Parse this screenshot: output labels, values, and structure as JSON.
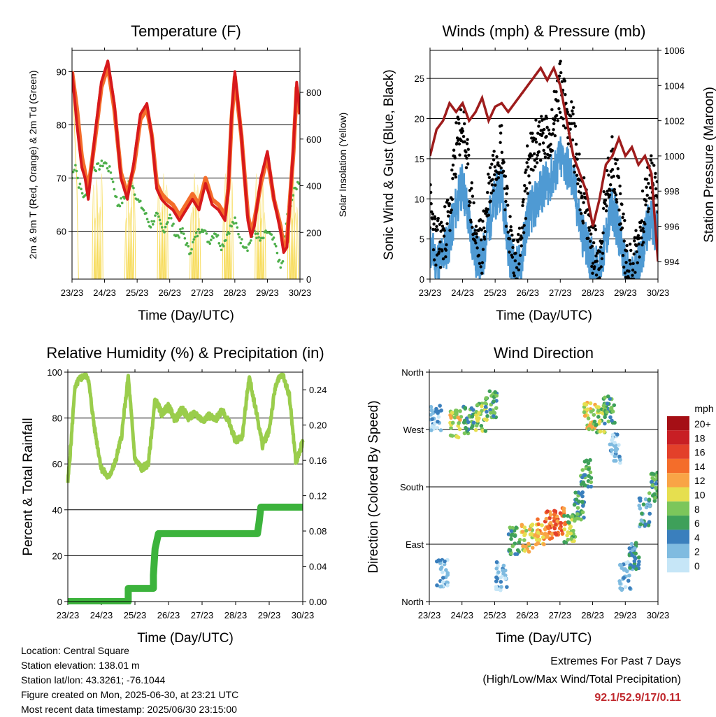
{
  "chart_data": [
    {
      "type": "line",
      "title": "Temperature (F)",
      "xlabel": "Time (Day/UTC)",
      "ylabel": "2m & 9m T (Red, Orange) & 2m Td (Green)",
      "y2label": "Solar Insolation (Yellow)",
      "x_ticks": [
        "23/23",
        "24/23",
        "25/23",
        "26/23",
        "27/23",
        "28/23",
        "29/23",
        "30/23"
      ],
      "ylim": [
        51,
        94
      ],
      "y_ticks": [
        60,
        70,
        80,
        90
      ],
      "y2lim": [
        0,
        980
      ],
      "y2_ticks": [
        0,
        200,
        400,
        600,
        800
      ],
      "grid": true,
      "series": [
        {
          "name": "2m T",
          "color": "#d7191c",
          "x": [
            0,
            0.15,
            0.3,
            0.4,
            0.5,
            0.7,
            0.9,
            1.1,
            1.3,
            1.5,
            1.7,
            1.9,
            2.1,
            2.3,
            2.45,
            2.6,
            2.75,
            2.9,
            3.1,
            3.3,
            3.5,
            3.7,
            3.9,
            4.1,
            4.2,
            4.3,
            4.5,
            4.7,
            4.8,
            4.9,
            5.0,
            5.2,
            5.4,
            5.5,
            5.6,
            5.8,
            6.0,
            6.2,
            6.4,
            6.5,
            6.6,
            6.8,
            6.9,
            7.0
          ],
          "y": [
            90,
            80,
            72,
            70,
            66,
            78,
            88,
            92,
            84,
            70,
            66,
            73,
            82,
            84,
            78,
            68,
            66,
            65,
            64,
            62,
            64,
            66,
            64,
            69,
            67,
            65,
            64,
            62,
            68,
            82,
            90,
            78,
            62,
            59,
            61,
            70,
            75,
            66,
            60,
            56,
            57,
            76,
            88,
            82
          ]
        },
        {
          "name": "9m T",
          "color": "#f46d2a",
          "x": [
            0,
            0.15,
            0.3,
            0.4,
            0.5,
            0.7,
            0.9,
            1.1,
            1.3,
            1.5,
            1.7,
            1.9,
            2.1,
            2.3,
            2.45,
            2.6,
            2.75,
            2.9,
            3.1,
            3.3,
            3.5,
            3.7,
            3.9,
            4.1,
            4.2,
            4.3,
            4.5,
            4.7,
            4.8,
            4.9,
            5.0,
            5.2,
            5.4,
            5.5,
            5.6,
            5.8,
            6.0,
            6.2,
            6.4,
            6.5,
            6.6,
            6.8,
            6.9,
            7.0
          ],
          "y": [
            90,
            83,
            74,
            71,
            68,
            77,
            87,
            91,
            83,
            71,
            67,
            72,
            81,
            83,
            78,
            69,
            67,
            66,
            65,
            63,
            65,
            67,
            65,
            70,
            68,
            66,
            65,
            63,
            68,
            81,
            89,
            78,
            63,
            60,
            62,
            69,
            74,
            66,
            61,
            57,
            58,
            75,
            87,
            82
          ]
        },
        {
          "name": "2m Td",
          "color": "#4daf4a",
          "x": [
            0,
            0.1,
            0.2,
            0.4,
            0.6,
            0.8,
            1.0,
            1.2,
            1.4,
            1.6,
            1.8,
            2.0,
            2.2,
            2.4,
            2.6,
            2.8,
            3.0,
            3.2,
            3.4,
            3.6,
            3.8,
            4.0,
            4.2,
            4.4,
            4.6,
            4.8,
            5.0,
            5.2,
            5.4,
            5.6,
            5.8,
            6.0,
            6.2,
            6.3,
            6.4,
            6.5,
            6.6,
            6.8,
            7.0
          ],
          "y": [
            70,
            73,
            69,
            66,
            72,
            72,
            73,
            71,
            65,
            66,
            70,
            66,
            64,
            61,
            63,
            60,
            63,
            59,
            60,
            56,
            59,
            61,
            58,
            60,
            57,
            60,
            62,
            58,
            57,
            60,
            58,
            60,
            58,
            56,
            53,
            55,
            63,
            67,
            70
          ]
        },
        {
          "name": "Solar Insolation",
          "color": "#f7dc5c",
          "axis": "y2",
          "x": [
            0,
            0.15,
            0.35,
            0.6,
            0.85,
            1.15,
            1.4,
            1.6,
            1.85,
            2.1,
            2.35,
            2.6,
            2.85,
            3.1,
            3.35,
            3.6,
            3.85,
            4.1,
            4.35,
            4.6,
            4.85,
            5.1,
            5.35,
            5.6,
            5.85,
            6.1,
            6.35,
            6.6,
            6.85,
            7.0
          ],
          "y": [
            900,
            400,
            0,
            0,
            0,
            0,
            0,
            0,
            900,
            0,
            0,
            0,
            0,
            0,
            0,
            0,
            0,
            0,
            0,
            0,
            0,
            0,
            0,
            0,
            0,
            0,
            0,
            0,
            850,
            0
          ]
        }
      ]
    },
    {
      "type": "line",
      "title": "Winds (mph) & Pressure (mb)",
      "xlabel": "Time (Day/UTC)",
      "ylabel": "Sonic Wind & Gust (Blue, Black)",
      "y2label": "Station Pressure (Maroon)",
      "x_ticks": [
        "23/23",
        "24/23",
        "25/23",
        "26/23",
        "27/23",
        "28/23",
        "29/23",
        "30/23"
      ],
      "ylim": [
        0,
        28.5
      ],
      "y_ticks": [
        0,
        5,
        10,
        15,
        20,
        25
      ],
      "y2lim": [
        993.0,
        1006.0
      ],
      "y2_ticks": [
        994,
        996,
        998,
        1000,
        1002,
        1004,
        1006
      ],
      "grid": true,
      "series": [
        {
          "name": "Sonic Wind",
          "color": "#4f9ad3",
          "x": [
            0,
            0.2,
            0.4,
            0.6,
            0.8,
            1.0,
            1.2,
            1.4,
            1.6,
            1.8,
            2.0,
            2.2,
            2.4,
            2.6,
            2.8,
            3.0,
            3.2,
            3.4,
            3.6,
            3.8,
            4.0,
            4.2,
            4.4,
            4.6,
            4.8,
            5.0,
            5.2,
            5.4,
            5.6,
            5.8,
            6.0,
            6.2,
            6.4,
            6.6,
            6.8,
            7.0
          ],
          "y": [
            4,
            2,
            3,
            5,
            9,
            12,
            7,
            3,
            2,
            7,
            10,
            12,
            4,
            1,
            2,
            8,
            9,
            11,
            12,
            13,
            15,
            14,
            12,
            7,
            4,
            2,
            1,
            5,
            9,
            6,
            1,
            0,
            2,
            5,
            8,
            5
          ]
        },
        {
          "name": "Gust",
          "color": "#000000",
          "x": [
            0,
            0.2,
            0.4,
            0.6,
            0.8,
            1.0,
            1.2,
            1.4,
            1.6,
            1.8,
            2.0,
            2.2,
            2.4,
            2.6,
            2.8,
            3.0,
            3.2,
            3.4,
            3.6,
            3.8,
            4.0,
            4.2,
            4.4,
            4.6,
            4.8,
            5.0,
            5.2,
            5.4,
            5.6,
            5.8,
            6.0,
            6.2,
            6.4,
            6.6,
            6.8,
            7.0
          ],
          "y": [
            9,
            4,
            5,
            8,
            16,
            20,
            12,
            5,
            4,
            11,
            15,
            17,
            7,
            2,
            4,
            14,
            16,
            18,
            17,
            20,
            24,
            21,
            18,
            12,
            8,
            4,
            2,
            10,
            15,
            11,
            3,
            1,
            5,
            9,
            13,
            9
          ]
        },
        {
          "name": "Station Pressure",
          "color": "#9e1c1c",
          "axis": "y2",
          "x": [
            0,
            0.2,
            0.4,
            0.6,
            0.8,
            1.0,
            1.2,
            1.4,
            1.6,
            1.8,
            2.0,
            2.2,
            2.4,
            2.6,
            2.8,
            3.0,
            3.2,
            3.4,
            3.6,
            3.8,
            4.0,
            4.2,
            4.4,
            4.6,
            4.8,
            5.0,
            5.2,
            5.4,
            5.6,
            5.8,
            6.0,
            6.2,
            6.4,
            6.6,
            6.8,
            7.0
          ],
          "y": [
            1000.0,
            1001.5,
            1002.0,
            1003.0,
            1002.5,
            1003.0,
            1002.0,
            1002.5,
            1003.3,
            1002.0,
            1002.8,
            1003.0,
            1002.5,
            1003.0,
            1003.5,
            1004.0,
            1004.5,
            1005.0,
            1004.3,
            1005.0,
            1004.0,
            1002.0,
            1000.0,
            999.0,
            998.0,
            996.0,
            997.5,
            999.5,
            1000.0,
            1001.0,
            1000.0,
            1000.5,
            999.5,
            1000.0,
            999.0,
            994.0
          ]
        }
      ]
    },
    {
      "type": "line",
      "title": "Relative Humidity (%) & Precipitation (in)",
      "xlabel": "Time (Day/UTC)",
      "ylabel": "Percent & Total Rainfall",
      "x_ticks": [
        "23/23",
        "24/23",
        "25/23",
        "26/23",
        "27/23",
        "28/23",
        "29/23",
        "30/23"
      ],
      "ylim": [
        0,
        100
      ],
      "y_ticks": [
        0,
        20,
        40,
        60,
        80,
        100
      ],
      "y2lim": [
        0,
        0.26
      ],
      "y2_ticks": [
        0.0,
        0.04,
        0.08,
        0.12,
        0.16,
        0.2,
        0.24
      ],
      "grid": true,
      "series": [
        {
          "name": "Relative Humidity",
          "color": "#9acd4c",
          "x": [
            0,
            0.1,
            0.2,
            0.3,
            0.5,
            0.6,
            0.8,
            1.0,
            1.2,
            1.4,
            1.6,
            1.8,
            2.0,
            2.2,
            2.4,
            2.6,
            2.8,
            3.0,
            3.2,
            3.4,
            3.6,
            3.8,
            4.0,
            4.2,
            4.4,
            4.6,
            4.8,
            5.0,
            5.2,
            5.4,
            5.6,
            5.8,
            6.0,
            6.2,
            6.4,
            6.6,
            6.8,
            7.0
          ],
          "y": [
            52,
            70,
            92,
            96,
            99,
            98,
            75,
            58,
            54,
            60,
            72,
            98,
            62,
            58,
            60,
            88,
            82,
            85,
            79,
            84,
            80,
            82,
            79,
            81,
            79,
            84,
            78,
            70,
            72,
            98,
            84,
            68,
            75,
            95,
            99,
            90,
            60,
            70
          ]
        },
        {
          "name": "Total Precipitation",
          "color": "#3cb33c",
          "axis": "y2",
          "x": [
            0,
            1.8,
            1.8,
            2.55,
            2.55,
            2.6,
            2.7,
            5.65,
            5.7,
            5.75,
            7.0
          ],
          "y": [
            0.0,
            0.0,
            0.015,
            0.015,
            0.03,
            0.06,
            0.077,
            0.077,
            0.09,
            0.107,
            0.107
          ]
        }
      ]
    },
    {
      "type": "scatter",
      "title": "Wind Direction",
      "xlabel": "Time (Day/UTC)",
      "ylabel": "Direction (Colored By Speed)",
      "x_ticks": [
        "23/23",
        "24/23",
        "25/23",
        "26/23",
        "27/23",
        "28/23",
        "29/23",
        "30/23"
      ],
      "y_ticks": [
        "North",
        "East",
        "South",
        "West",
        "North"
      ],
      "y_tick_values": [
        0,
        90,
        180,
        270,
        360
      ],
      "ylim": [
        0,
        360
      ],
      "grid": true,
      "legend": {
        "title": "mph",
        "position": "right",
        "labels": [
          "20+",
          "18",
          "16",
          "14",
          "12",
          "10",
          "8",
          "6",
          "4",
          "2",
          "0"
        ],
        "colors": [
          "#a50f15",
          "#c81f24",
          "#e3402a",
          "#f46d2a",
          "#f9a446",
          "#e6df4f",
          "#7cc65b",
          "#3ea05a",
          "#3a7fbd",
          "#7fbbe0",
          "#c6e6f7"
        ]
      },
      "clusters": [
        {
          "x": 0.4,
          "dir": 45,
          "speed": 2
        },
        {
          "x": 0.2,
          "dir": 290,
          "speed": 2
        },
        {
          "x": 0.8,
          "dir": 280,
          "speed": 10
        },
        {
          "x": 1.2,
          "dir": 285,
          "speed": 6
        },
        {
          "x": 1.6,
          "dir": 290,
          "speed": 8
        },
        {
          "x": 1.9,
          "dir": 310,
          "speed": 6
        },
        {
          "x": 2.2,
          "dir": 40,
          "speed": 2
        },
        {
          "x": 2.6,
          "dir": 95,
          "speed": 6
        },
        {
          "x": 3.0,
          "dir": 100,
          "speed": 10
        },
        {
          "x": 3.4,
          "dir": 110,
          "speed": 12
        },
        {
          "x": 3.7,
          "dir": 120,
          "speed": 14
        },
        {
          "x": 4.0,
          "dir": 125,
          "speed": 14
        },
        {
          "x": 4.3,
          "dir": 115,
          "speed": 8
        },
        {
          "x": 4.6,
          "dir": 150,
          "speed": 6
        },
        {
          "x": 4.8,
          "dir": 200,
          "speed": 6
        },
        {
          "x": 4.9,
          "dir": 290,
          "speed": 10
        },
        {
          "x": 5.2,
          "dir": 285,
          "speed": 8
        },
        {
          "x": 5.5,
          "dir": 300,
          "speed": 6
        },
        {
          "x": 5.7,
          "dir": 240,
          "speed": 2
        },
        {
          "x": 6.0,
          "dir": 40,
          "speed": 2
        },
        {
          "x": 6.3,
          "dir": 70,
          "speed": 4
        },
        {
          "x": 6.6,
          "dir": 140,
          "speed": 4
        },
        {
          "x": 6.9,
          "dir": 180,
          "speed": 6
        }
      ]
    }
  ],
  "info": {
    "location": "Location: Central Square",
    "elevation": "Station elevation: 138.01 m",
    "latlon": "Station lat/lon: 43.3261; -76.1044",
    "created": "Figure created on Mon, 2025-06-30, at 23:21 UTC",
    "recent": "Most recent data timestamp: 2025/06/30 23:15:00"
  },
  "extremes": {
    "title": "Extremes For Past 7 Days",
    "subtitle": "(High/Low/Max Wind/Total Precipitation)",
    "values": "92.1/52.9/17/0.11"
  }
}
